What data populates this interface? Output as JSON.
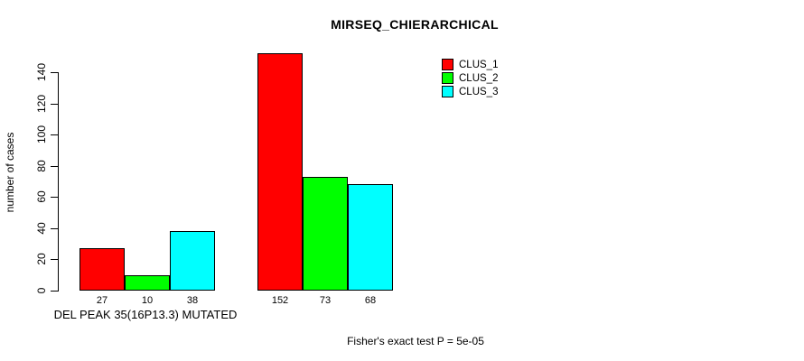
{
  "title": "MIRSEQ_CHIERARCHICAL",
  "footnote": "Fisher's exact test P = 5e-05",
  "chart_data": {
    "type": "bar",
    "title": "MIRSEQ_CHIERARCHICAL",
    "ylabel": "number of cases",
    "xlabel": "DEL PEAK 35(16P13.3) MUTATED",
    "groups": [
      "DEL PEAK 35(16P13.3) MUTATED",
      ""
    ],
    "series": [
      {
        "name": "CLUS_1",
        "color": "#FF0000",
        "values": [
          27,
          152
        ]
      },
      {
        "name": "CLUS_2",
        "color": "#00FF00",
        "values": [
          10,
          73
        ]
      },
      {
        "name": "CLUS_3",
        "color": "#00FFFF",
        "values": [
          38,
          68
        ]
      }
    ],
    "bar_value_labels": [
      [
        27,
        10,
        38
      ],
      [
        152,
        73,
        68
      ]
    ],
    "yticks": [
      0,
      20,
      40,
      60,
      80,
      100,
      120,
      140
    ],
    "ylim": [
      0,
      140
    ],
    "grid": false,
    "legend_position": "top-right",
    "annotation": "Fisher's exact test P = 5e-05",
    "background_color": "#FFFFFF",
    "bar_border_color": "#000000"
  },
  "legend": {
    "items": [
      {
        "label": "CLUS_1",
        "color": "#FF0000"
      },
      {
        "label": "CLUS_2",
        "color": "#00FF00"
      },
      {
        "label": "CLUS_3",
        "color": "#00FFFF"
      }
    ]
  }
}
